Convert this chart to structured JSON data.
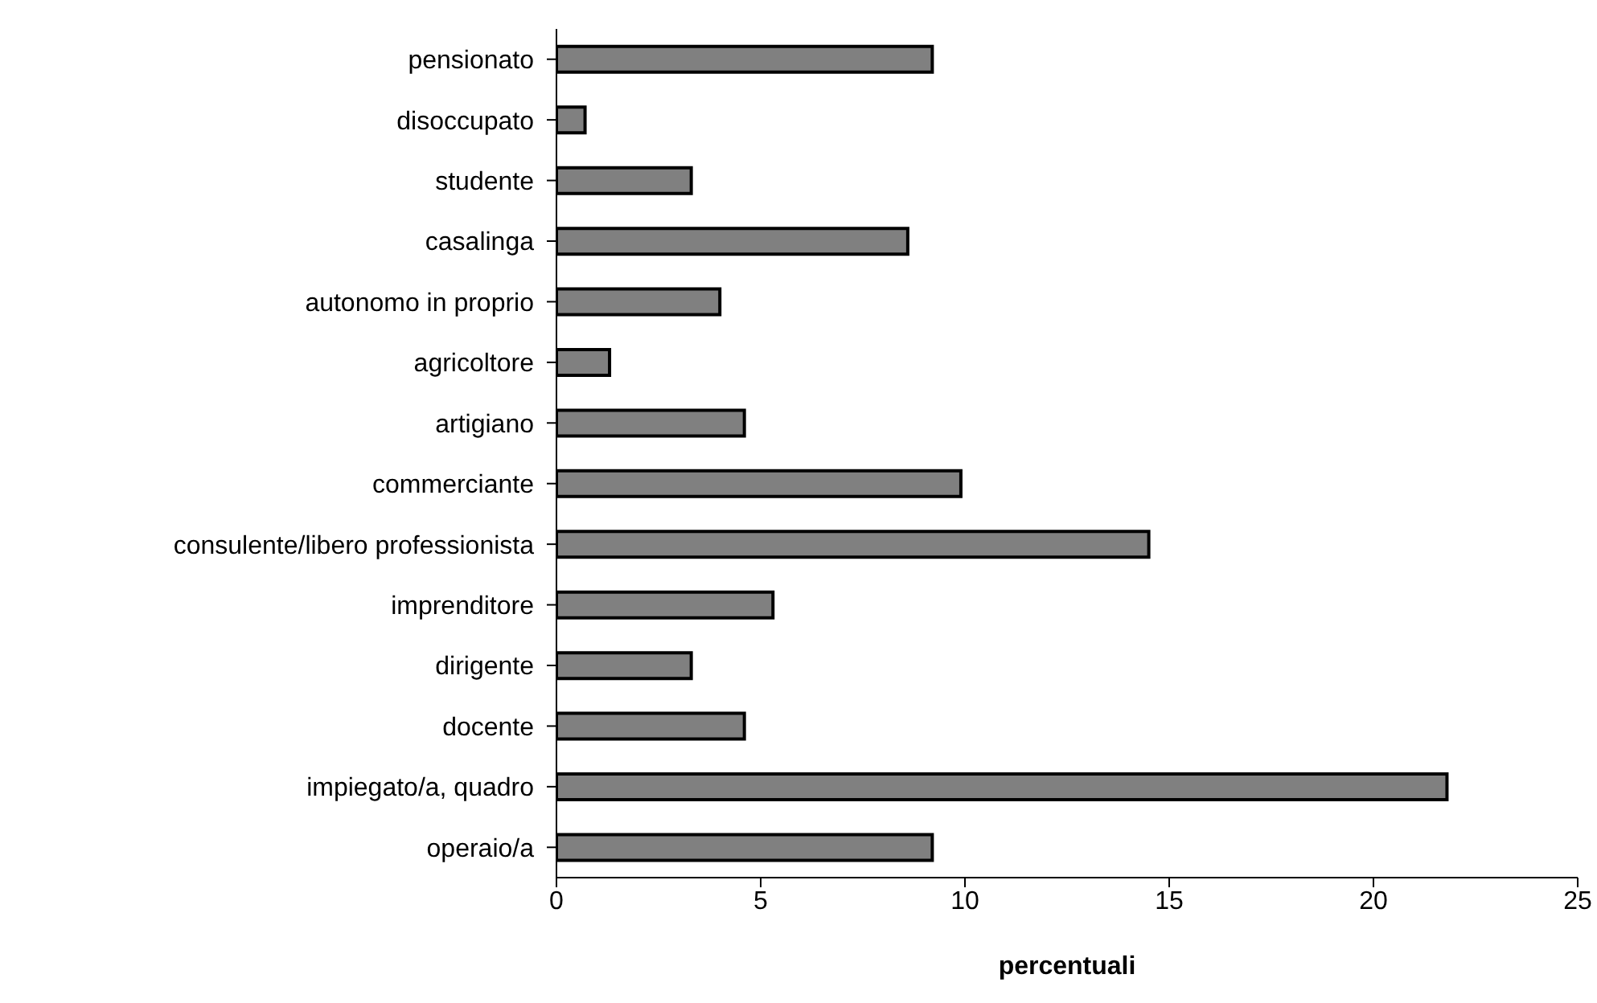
{
  "chart_data": {
    "type": "bar",
    "orientation": "horizontal",
    "categories": [
      "pensionato",
      "disoccupato",
      "studente",
      "casalinga",
      "autonomo in proprio",
      "agricoltore",
      "artigiano",
      "commerciante",
      "consulente/libero professionista",
      "imprenditore",
      "dirigente",
      "docente",
      "impiegato/a, quadro",
      "operaio/a"
    ],
    "values": [
      9.2,
      0.7,
      3.3,
      8.6,
      4.0,
      1.3,
      4.6,
      9.9,
      14.5,
      5.3,
      3.3,
      4.6,
      21.8,
      9.2
    ],
    "color": "#808080",
    "xlabel": "percentuali",
    "xlim": [
      0,
      25
    ],
    "xticks": [
      0,
      5,
      10,
      15,
      20,
      25
    ],
    "grid": false,
    "legend": false
  }
}
